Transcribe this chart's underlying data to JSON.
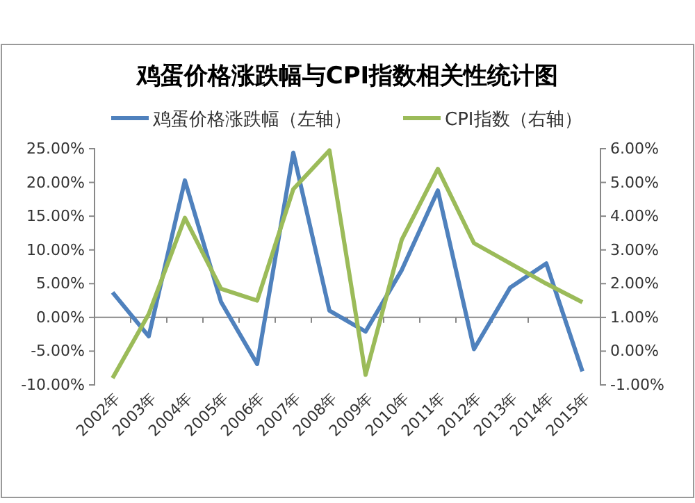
{
  "chart_data": {
    "type": "line",
    "title": "鸡蛋价格涨跌幅与CPI指数相关性统计图",
    "categories": [
      "2002年",
      "2003年",
      "2004年",
      "2005年",
      "2006年",
      "2007年",
      "2008年",
      "2009年",
      "2010年",
      "2011年",
      "2012年",
      "2013年",
      "2014年",
      "2015年"
    ],
    "series": [
      {
        "name": "鸡蛋价格涨跌幅（左轴）",
        "color": "#4f81bd",
        "values": [
          3.7,
          -2.8,
          20.3,
          2.3,
          -6.9,
          24.4,
          1.0,
          -2.1,
          7.0,
          18.8,
          -4.7,
          4.4,
          8.0,
          -8.0
        ]
      },
      {
        "name": "CPI指数（右轴）",
        "color": "#9bbb59",
        "axis": "y2",
        "values": [
          -0.8,
          1.1,
          3.95,
          1.85,
          1.5,
          4.8,
          5.95,
          -0.7,
          3.3,
          5.4,
          3.2,
          2.6,
          2.0,
          1.45
        ]
      }
    ],
    "ylim": [
      -10,
      25
    ],
    "yticks": [
      {
        "value": -10,
        "label": "-10.00%"
      },
      {
        "value": -5,
        "label": "-5.00%"
      },
      {
        "value": 0,
        "label": "0.00%"
      },
      {
        "value": 5,
        "label": "5.00%"
      },
      {
        "value": 10,
        "label": "10.00%"
      },
      {
        "value": 15,
        "label": "15.00%"
      },
      {
        "value": 20,
        "label": "20.00%"
      },
      {
        "value": 25,
        "label": "25.00%"
      }
    ],
    "y2lim": [
      -1,
      6
    ],
    "y2ticks": [
      {
        "value": -1,
        "label": "-1.00%"
      },
      {
        "value": 0,
        "label": "0.00%"
      },
      {
        "value": 1,
        "label": "1.00%"
      },
      {
        "value": 2,
        "label": "2.00%"
      },
      {
        "value": 3,
        "label": "3.00%"
      },
      {
        "value": 4,
        "label": "4.00%"
      },
      {
        "value": 5,
        "label": "5.00%"
      },
      {
        "value": 6,
        "label": "6.00%"
      }
    ],
    "legend": "top",
    "marker": "none",
    "line_style": "solid"
  }
}
